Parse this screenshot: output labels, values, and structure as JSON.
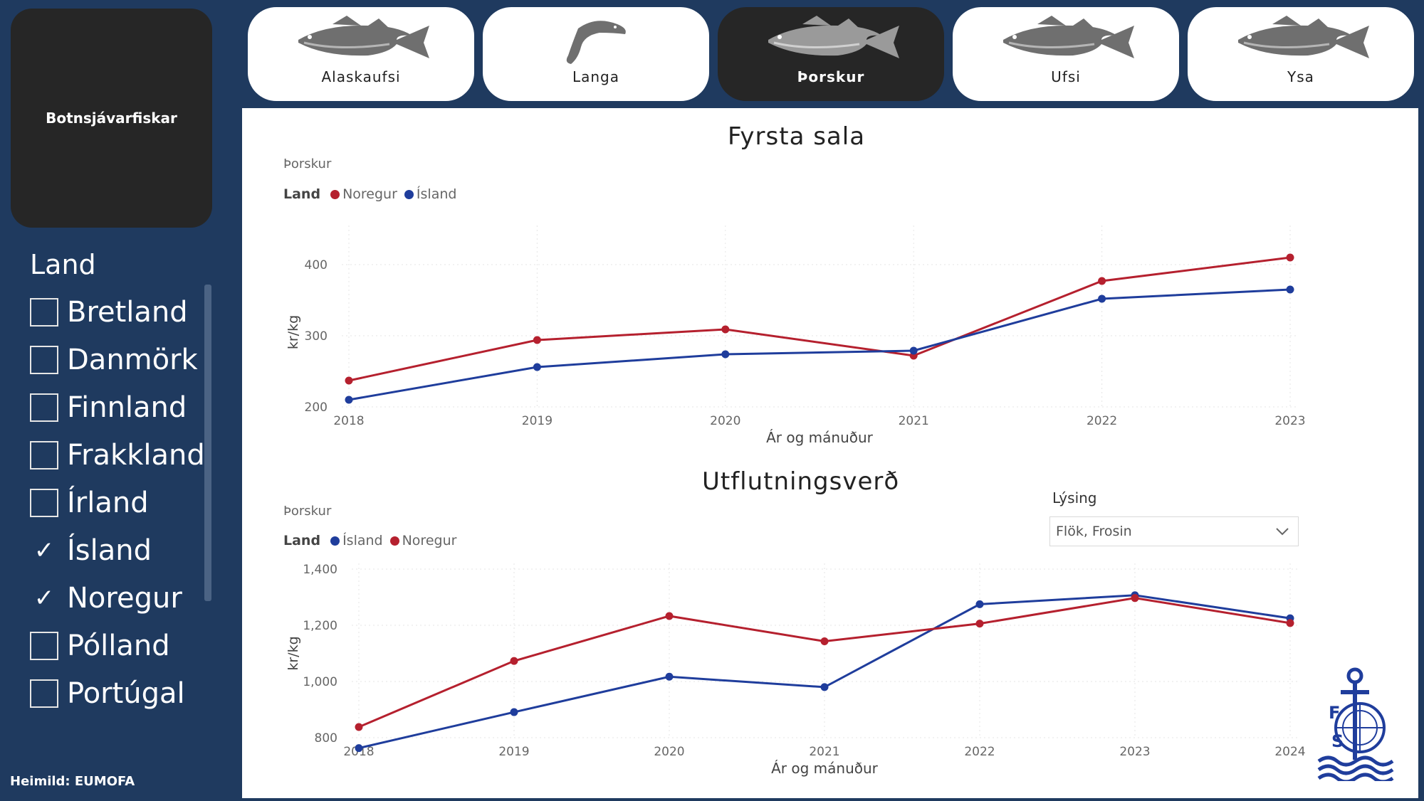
{
  "sidebar": {
    "brand": "Botnsjávarfiskar",
    "slicer_title": "Land",
    "items": [
      {
        "label": "Bretland",
        "checked": false
      },
      {
        "label": "Danmörk",
        "checked": false
      },
      {
        "label": "Finnland",
        "checked": false
      },
      {
        "label": "Frakkland",
        "checked": false
      },
      {
        "label": "Írland",
        "checked": false
      },
      {
        "label": "Ísland",
        "checked": true
      },
      {
        "label": "Noregur",
        "checked": true
      },
      {
        "label": "Pólland",
        "checked": false
      },
      {
        "label": "Portúgal",
        "checked": false
      }
    ],
    "source": "Heimild: EUMOFA"
  },
  "tabs": [
    {
      "label": "Alaskaufsi",
      "icon": "pollock-fish-icon",
      "active": false
    },
    {
      "label": "Langa",
      "icon": "ling-fish-icon",
      "active": false
    },
    {
      "label": "Þorskur",
      "icon": "cod-fish-icon",
      "active": true
    },
    {
      "label": "Ufsi",
      "icon": "saithe-fish-icon",
      "active": false
    },
    {
      "label": "Ysa",
      "icon": "haddock-fish-icon",
      "active": false
    }
  ],
  "colors": {
    "noregur": "#b5202e",
    "island": "#1f3d9c"
  },
  "charts": {
    "first_sale": {
      "title": "Fyrsta sala",
      "subtitle": "Þorskur",
      "legend_title": "Land",
      "legend": [
        "Noregur",
        "Ísland"
      ]
    },
    "export": {
      "title": "Utflutningsverð",
      "subtitle": "Þorskur",
      "legend_title": "Land",
      "legend": [
        "Ísland",
        "Noregur"
      ]
    }
  },
  "filter": {
    "label": "Lýsing",
    "value": "Flök, Frosin"
  },
  "chart_data": [
    {
      "type": "line",
      "title": "Fyrsta sala",
      "xlabel": "Ár og mánuður",
      "ylabel": "kr/kg",
      "x": [
        "2018",
        "2019",
        "2020",
        "2021",
        "2022",
        "2023"
      ],
      "yticks": [
        "200",
        "300",
        "400"
      ],
      "ylim": [
        200,
        420
      ],
      "series": [
        {
          "name": "Noregur",
          "values": [
            237,
            294,
            309,
            272,
            377,
            410
          ]
        },
        {
          "name": "Ísland",
          "values": [
            210,
            256,
            274,
            279,
            352,
            365
          ]
        }
      ]
    },
    {
      "type": "line",
      "title": "Utflutningsverð",
      "xlabel": "Ár og mánuður",
      "ylabel": "kr/kg",
      "x": [
        "2018",
        "2019",
        "2020",
        "2021",
        "2022",
        "2023",
        "2024"
      ],
      "yticks": [
        "800",
        "1,000",
        "1,200",
        "1,400"
      ],
      "ylim": [
        760,
        1400
      ],
      "series": [
        {
          "name": "Ísland",
          "values": [
            763,
            891,
            1017,
            980,
            1275,
            1307,
            1225
          ]
        },
        {
          "name": "Noregur",
          "values": [
            838,
            1073,
            1233,
            1143,
            1206,
            1297,
            1208
          ]
        }
      ]
    }
  ]
}
